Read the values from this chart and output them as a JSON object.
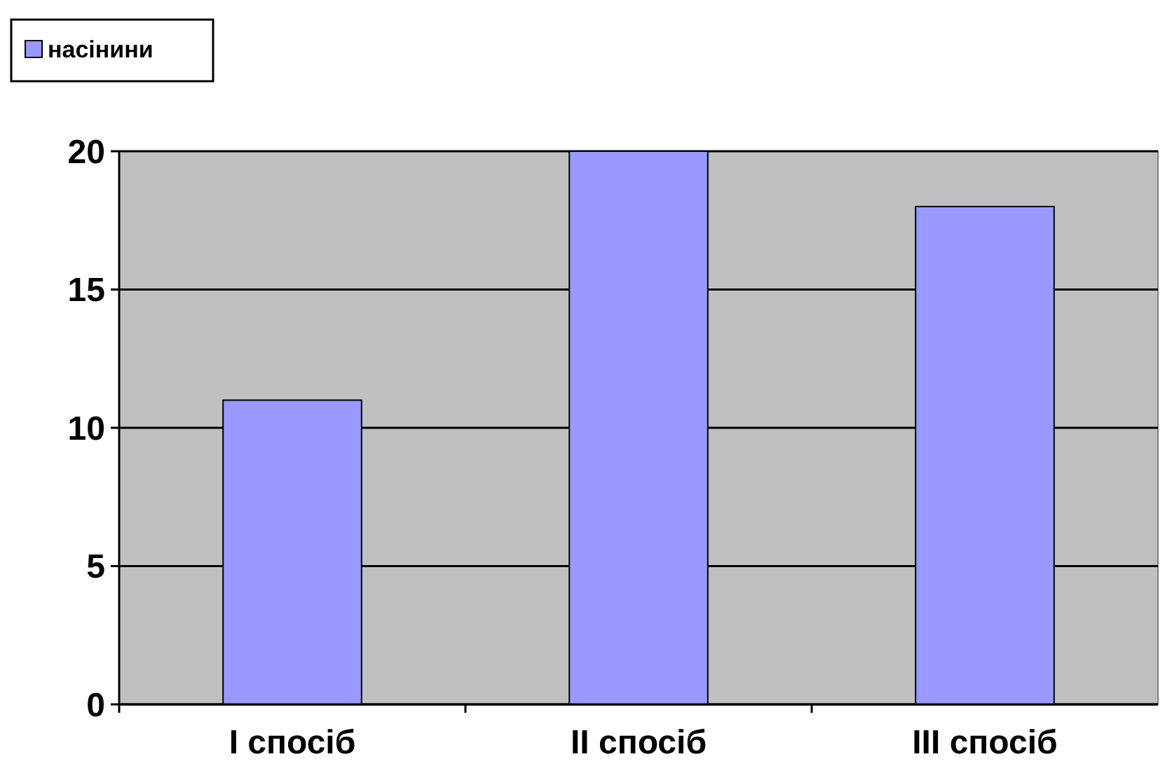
{
  "chart_data": {
    "type": "bar",
    "categories": [
      "I спосіб",
      "II спосіб",
      "III спосіб"
    ],
    "series": [
      {
        "name": "насінини",
        "color": "#9999ff",
        "values": [
          11,
          20,
          18
        ]
      }
    ],
    "ylim": [
      0,
      20
    ],
    "yticks": [
      0,
      5,
      10,
      15,
      20
    ],
    "grid": "y",
    "legend": "top left"
  }
}
